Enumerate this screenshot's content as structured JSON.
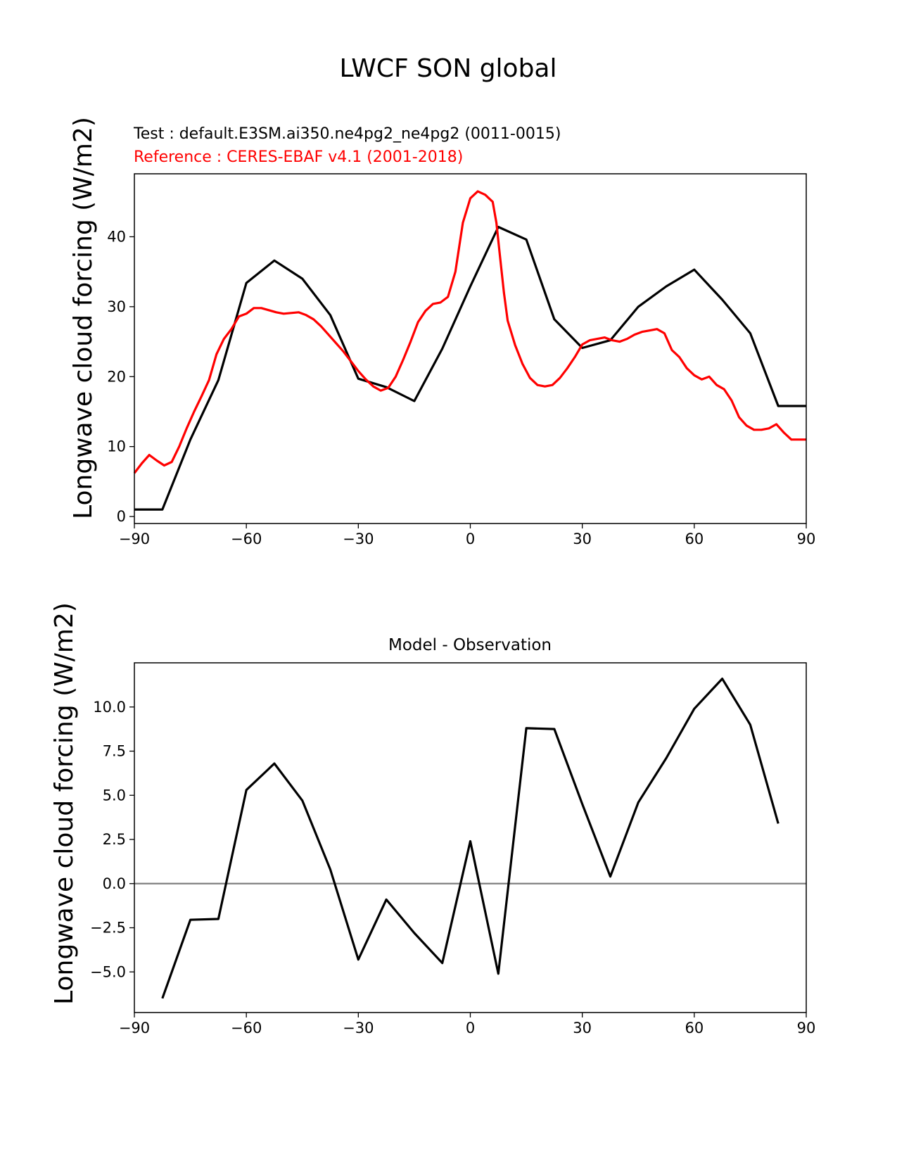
{
  "figure": {
    "title": "LWCF SON global"
  },
  "colors": {
    "test": "#000000",
    "reference": "#ff0000",
    "zero_line": "#808080"
  },
  "chart_data": [
    {
      "type": "line",
      "test_label": "Test : default.E3SM.ai350.ne4pg2_ne4pg2 (0011-0015)",
      "reference_label": "Reference : CERES-EBAF v4.1 (2001-2018)",
      "ylabel": "Longwave cloud forcing (W/m2)",
      "xlim": [
        -90,
        90
      ],
      "ylim": [
        -1,
        49
      ],
      "xticks": [
        -90,
        -60,
        -30,
        0,
        30,
        60,
        90
      ],
      "xtick_labels": [
        "−90",
        "−60",
        "−30",
        "0",
        "30",
        "60",
        "90"
      ],
      "yticks": [
        0,
        10,
        20,
        30,
        40
      ],
      "ytick_labels": [
        "0",
        "10",
        "20",
        "30",
        "40"
      ],
      "series": [
        {
          "x": [
            -90,
            -82.5,
            -75,
            -67.5,
            -60,
            -52.5,
            -45,
            -37.5,
            -30,
            -22.5,
            -15,
            -7.5,
            0,
            7.5,
            15,
            22.5,
            30,
            37.5,
            45,
            52.5,
            60,
            67.5,
            75,
            82.5,
            90
          ],
          "y": [
            1.0,
            1.0,
            11.0,
            19.5,
            33.4,
            36.6,
            34.0,
            28.8,
            19.7,
            18.5,
            16.5,
            24.0,
            32.9,
            41.4,
            39.6,
            28.2,
            24.1,
            25.2,
            30.0,
            32.9,
            35.3,
            31.0,
            26.2,
            15.8,
            15.8
          ]
        },
        {
          "x": [
            -90,
            -88,
            -86,
            -84,
            -82,
            -80,
            -78,
            -76,
            -74,
            -72,
            -70,
            -68,
            -66,
            -64,
            -62,
            -60,
            -58,
            -56,
            -54,
            -52,
            -50,
            -48,
            -46,
            -44,
            -42,
            -40,
            -38,
            -36,
            -34,
            -32,
            -30,
            -28,
            -26,
            -24,
            -22,
            -20,
            -18,
            -16,
            -14,
            -12,
            -10,
            -8,
            -6,
            -4,
            -2,
            0,
            2,
            4,
            6,
            7,
            8,
            9,
            10,
            12,
            14,
            16,
            18,
            20,
            22,
            24,
            26,
            28,
            30,
            32,
            34,
            36,
            38,
            40,
            42,
            44,
            46,
            48,
            50,
            52,
            54,
            56,
            58,
            60,
            62,
            64,
            66,
            68,
            70,
            72,
            74,
            76,
            78,
            80,
            82,
            84,
            86,
            88,
            90
          ],
          "y": [
            6.2,
            7.6,
            8.8,
            8.0,
            7.3,
            7.8,
            10.0,
            12.6,
            15.0,
            17.2,
            19.5,
            23.2,
            25.4,
            26.8,
            28.6,
            29.0,
            29.8,
            29.8,
            29.5,
            29.2,
            29.0,
            29.1,
            29.2,
            28.8,
            28.2,
            27.2,
            26.0,
            24.8,
            23.6,
            22.2,
            20.8,
            19.6,
            18.6,
            18.0,
            18.4,
            20.0,
            22.4,
            25.0,
            27.8,
            29.4,
            30.4,
            30.6,
            31.4,
            35.0,
            42.0,
            45.5,
            46.5,
            46.0,
            45.0,
            42.0,
            37.0,
            32.0,
            28.0,
            24.5,
            21.8,
            19.8,
            18.8,
            18.6,
            18.8,
            19.8,
            21.2,
            22.8,
            24.6,
            25.2,
            25.4,
            25.6,
            25.2,
            25.0,
            25.4,
            26.0,
            26.4,
            26.6,
            26.8,
            26.2,
            23.8,
            22.8,
            21.2,
            20.2,
            19.6,
            20.0,
            18.8,
            18.2,
            16.6,
            14.2,
            13.0,
            12.4,
            12.4,
            12.6,
            13.2,
            12.0,
            11.0,
            11.0,
            11.0
          ]
        }
      ]
    },
    {
      "type": "line",
      "title": "Model - Observation",
      "ylabel": "Longwave cloud forcing (W/m2)",
      "xlim": [
        -90,
        90
      ],
      "ylim": [
        -7.3,
        12.5
      ],
      "xticks": [
        -90,
        -60,
        -30,
        0,
        30,
        60,
        90
      ],
      "xtick_labels": [
        "−90",
        "−60",
        "−30",
        "0",
        "30",
        "60",
        "90"
      ],
      "yticks": [
        -5.0,
        -2.5,
        0.0,
        2.5,
        5.0,
        7.5,
        10.0
      ],
      "ytick_labels": [
        "−5.0",
        "−2.5",
        "0.0",
        "2.5",
        "5.0",
        "7.5",
        "10.0"
      ],
      "zero_line": 0,
      "series": [
        {
          "x": [
            -82.5,
            -75,
            -67.5,
            -60,
            -52.5,
            -45,
            -37.5,
            -30,
            -22.5,
            -15,
            -7.5,
            0,
            7.5,
            15,
            22.5,
            30,
            37.5,
            45,
            52.5,
            60,
            67.5,
            75,
            82.5
          ],
          "y": [
            -6.5,
            -2.05,
            -2.0,
            5.3,
            6.8,
            4.7,
            0.8,
            -4.3,
            -0.9,
            -2.8,
            -4.5,
            2.4,
            -5.1,
            8.8,
            8.75,
            4.5,
            0.4,
            4.6,
            7.1,
            9.9,
            11.6,
            9.0,
            3.4
          ]
        }
      ]
    }
  ]
}
